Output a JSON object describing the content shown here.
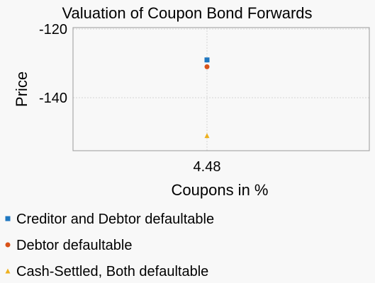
{
  "chart_data": {
    "type": "scatter",
    "title": "Valuation of Coupon Bond Forwards",
    "xlabel": "Coupons in %",
    "ylabel": "Price",
    "x_tick_labels": [
      "4.48"
    ],
    "y_ticks": [
      -120,
      -140
    ],
    "y_tick_labels": [
      "-120",
      "-140"
    ],
    "ylim": [
      -155.4,
      -119.6
    ],
    "grid": true,
    "legend_position": "bottom-left",
    "series": [
      {
        "name": "Creditor and Debtor defaultable",
        "x": [
          4.48
        ],
        "y": [
          -129
        ],
        "marker": "square",
        "color": "#1f77c0"
      },
      {
        "name": "Debtor defaultable",
        "x": [
          4.48
        ],
        "y": [
          -131
        ],
        "marker": "circle",
        "color": "#d95319"
      },
      {
        "name": "Cash-Settled, Both defaultable",
        "x": [
          4.48
        ],
        "y": [
          -151
        ],
        "marker": "triangle",
        "color": "#edb120"
      }
    ]
  }
}
